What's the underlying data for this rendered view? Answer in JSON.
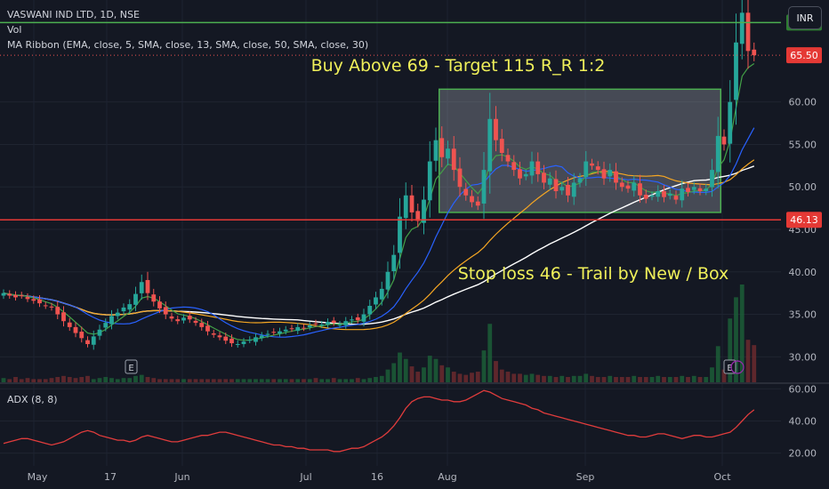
{
  "header": {
    "symbol": "VASWANI IND LTD, 1D, NSE",
    "vol_label": "Vol",
    "ma_label": "MA Ribbon (EMA, close, 5, SMA, close, 13, SMA, close, 50, SMA, close, 30)",
    "currency_button": "INR"
  },
  "colors": {
    "up": "#26a69a",
    "down": "#ef5350",
    "box_border": "#4caf50",
    "ema5": "#43a047",
    "sma13": "#2962ff",
    "sma30": "#f5a623",
    "sma50": "#ffffff",
    "annotation": "#f0f05a",
    "adx": "#e03c3c"
  },
  "chart_data": {
    "type": "candlestick",
    "title": "VASWANI IND LTD, 1D, NSE",
    "price_axis": {
      "ticks": [
        30,
        35,
        40,
        45,
        50,
        55,
        60
      ],
      "tick_labels": [
        "30.00",
        "35.00",
        "40.00",
        "45.00",
        "50.00",
        "55.00",
        "60.00"
      ],
      "range": [
        27,
        72
      ]
    },
    "time_axis": {
      "labels": [
        "May",
        "17",
        "Jun",
        "Jul",
        "16",
        "Aug",
        "Sep",
        "Oct"
      ]
    },
    "price_badges": [
      {
        "value": 69.35,
        "label": "69.35",
        "color": "#2e7d32"
      },
      {
        "value": 65.5,
        "label": "65.50",
        "color": "#e53935"
      },
      {
        "value": 46.13,
        "label": "46.13",
        "color": "#e53935"
      }
    ],
    "horizontal_lines": [
      {
        "value": 69.35,
        "color": "#4caf50",
        "style": "solid"
      },
      {
        "value": 65.5,
        "color": "#ef5350",
        "style": "dotted"
      },
      {
        "value": 46.13,
        "color": "#e53935",
        "style": "solid"
      }
    ],
    "box": {
      "from_day": 73,
      "to_day": 119,
      "top": 61.5,
      "bottom": 47.0
    },
    "annotations": [
      {
        "text": "Buy Above 69 - Target 115 R_R 1:2"
      },
      {
        "text": "Stop loss 46 - Trail by New / Box"
      }
    ],
    "earnings_markers": [
      "E",
      "E"
    ],
    "adx": {
      "label": "ADX (8, 8)",
      "ticks": [
        20,
        40,
        60
      ],
      "tick_labels": [
        "20.00",
        "40.00",
        "60.00"
      ],
      "range": [
        12,
        63
      ]
    },
    "closes": [
      37.5,
      37.2,
      37.0,
      37.2,
      36.8,
      36.6,
      36.3,
      36.0,
      35.8,
      35.0,
      34.2,
      33.5,
      32.8,
      32.2,
      31.5,
      32.4,
      33.2,
      34.0,
      34.8,
      35.2,
      35.8,
      36.2,
      37.4,
      38.8,
      37.5,
      36.5,
      35.7,
      35.0,
      34.5,
      34.2,
      34.6,
      34.4,
      34.0,
      33.5,
      33.0,
      32.6,
      32.3,
      31.9,
      31.6,
      31.5,
      31.8,
      32.0,
      32.3,
      32.5,
      32.7,
      32.9,
      33.0,
      33.2,
      33.3,
      33.5,
      33.4,
      33.7,
      33.9,
      33.8,
      34.1,
      34.0,
      33.8,
      34.2,
      34.4,
      34.3,
      35.0,
      36.0,
      37.0,
      38.0,
      40.0,
      42.0,
      46.5,
      49.0,
      47.0,
      46.0,
      48.5,
      53.0,
      55.5,
      53.5,
      54.5,
      52.0,
      50.0,
      49.0,
      48.2,
      47.8,
      52.0,
      58.0,
      55.5,
      54.0,
      53.0,
      52.0,
      51.0,
      51.5,
      53.0,
      51.5,
      50.5,
      51.0,
      49.5,
      50.0,
      49.0,
      50.5,
      51.0,
      53.0,
      52.5,
      52.0,
      51.0,
      52.0,
      50.5,
      50.0,
      49.8,
      50.5,
      49.0,
      48.6,
      49.0,
      49.5,
      48.8,
      49.2,
      48.5,
      49.8,
      49.4,
      50.0,
      49.5,
      49.8,
      52.0,
      56.0,
      55.0,
      60.0,
      67.0,
      70.5,
      66.0,
      65.5
    ],
    "volume": [
      4,
      3,
      5,
      3,
      4,
      3,
      3,
      3,
      4,
      5,
      6,
      5,
      4,
      5,
      6,
      3,
      4,
      5,
      4,
      3,
      4,
      4,
      6,
      7,
      5,
      4,
      3,
      3,
      3,
      3,
      3,
      3,
      3,
      3,
      3,
      3,
      3,
      3,
      3,
      3,
      3,
      3,
      3,
      3,
      3,
      3,
      3,
      3,
      3,
      3,
      3,
      3,
      4,
      3,
      3,
      4,
      3,
      3,
      3,
      4,
      3,
      4,
      5,
      6,
      12,
      18,
      28,
      22,
      15,
      10,
      14,
      25,
      22,
      16,
      14,
      10,
      8,
      7,
      9,
      10,
      30,
      55,
      20,
      12,
      10,
      8,
      8,
      7,
      8,
      7,
      6,
      6,
      5,
      6,
      5,
      6,
      6,
      8,
      6,
      5,
      5,
      6,
      5,
      5,
      5,
      6,
      5,
      5,
      5,
      6,
      5,
      5,
      5,
      6,
      5,
      6,
      5,
      5,
      14,
      34,
      12,
      60,
      80,
      92,
      40,
      35
    ],
    "adx_values": [
      26,
      27,
      28,
      29,
      29,
      28,
      27,
      26,
      25,
      26,
      27,
      29,
      31,
      33,
      34,
      33,
      31,
      30,
      29,
      28,
      28,
      27,
      28,
      30,
      31,
      30,
      29,
      28,
      27,
      27,
      28,
      29,
      30,
      31,
      31,
      32,
      33,
      33,
      32,
      31,
      30,
      29,
      28,
      27,
      26,
      25,
      25,
      24,
      24,
      23,
      23,
      22,
      22,
      22,
      22,
      21,
      21,
      22,
      23,
      23,
      24,
      26,
      28,
      30,
      33,
      37,
      42,
      48,
      52,
      54,
      55,
      55,
      54,
      53,
      53,
      52,
      52,
      53,
      55,
      57,
      59,
      58,
      56,
      54,
      53,
      52,
      51,
      50,
      48,
      47,
      45,
      44,
      43,
      42,
      41,
      40,
      39,
      38,
      37,
      36,
      35,
      34,
      33,
      32,
      31,
      31,
      30,
      30,
      31,
      32,
      32,
      31,
      30,
      29,
      30,
      31,
      31,
      30,
      30,
      31,
      32,
      33,
      36,
      40,
      44,
      47
    ]
  }
}
